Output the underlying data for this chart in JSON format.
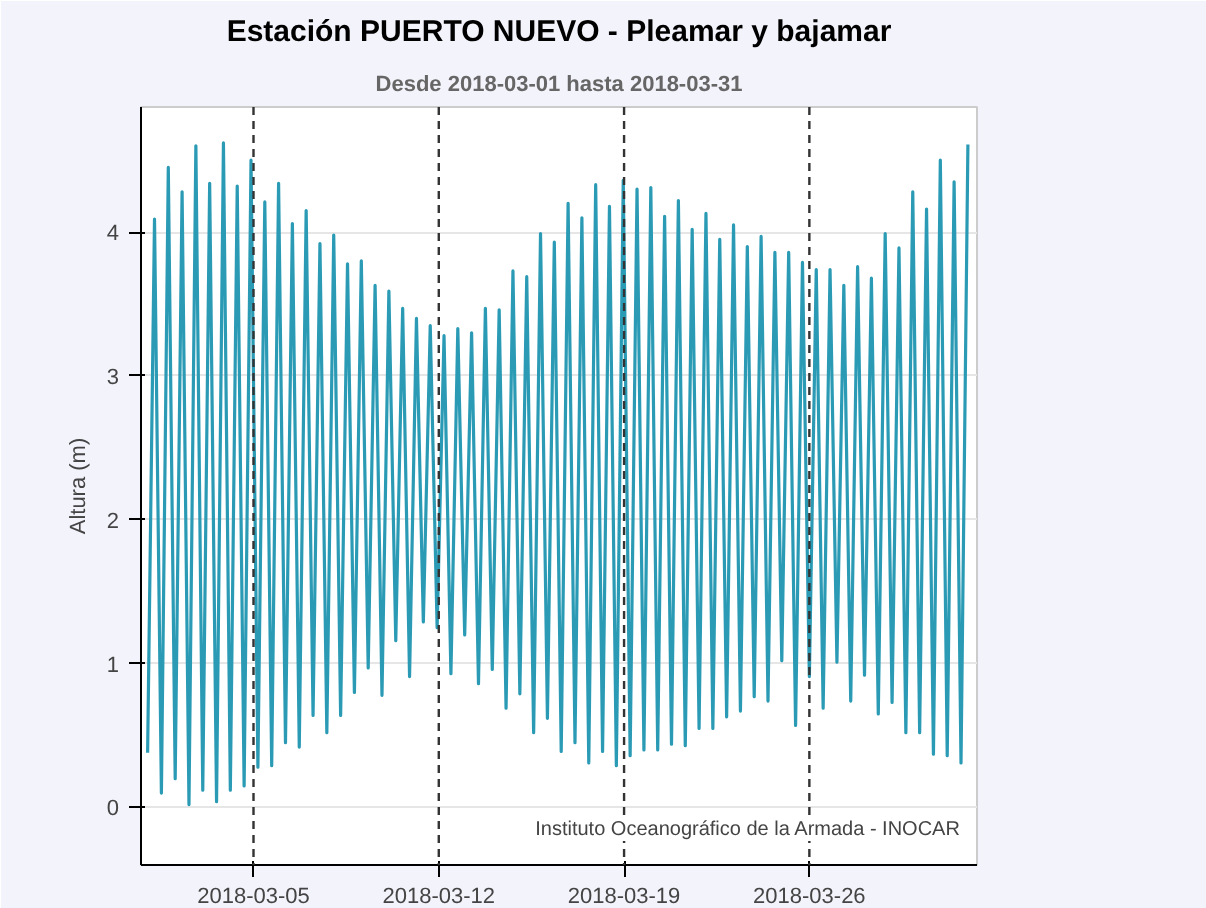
{
  "chart_data": {
    "type": "line",
    "title": "Estación PUERTO NUEVO - Pleamar y bajamar",
    "subtitle": "Desde 2018-03-01 hasta 2018-03-31",
    "ylabel": "Altura (m)",
    "annotations": [
      "Instituto Oceanográfico de la Armada - INOCAR"
    ],
    "xlim": [
      "2018-02-28T18:00",
      "2018-04-01T08:00"
    ],
    "xticks": [
      "2018-03-05",
      "2018-03-12",
      "2018-03-19",
      "2018-03-26"
    ],
    "ylim": [
      -0.4,
      4.87
    ],
    "yticks": [
      0,
      1,
      2,
      3,
      4
    ],
    "grid": "y",
    "marker": "none",
    "line_style": "solid",
    "ref_lines": [
      {
        "axis": "x",
        "value": "2018-03-05",
        "color": "#333333",
        "line_style": "dashed"
      },
      {
        "axis": "x",
        "value": "2018-03-12",
        "color": "#333333",
        "line_style": "dashed"
      },
      {
        "axis": "x",
        "value": "2018-03-19",
        "color": "#333333",
        "line_style": "dashed"
      },
      {
        "axis": "x",
        "value": "2018-03-26",
        "color": "#333333",
        "line_style": "dashed"
      }
    ],
    "x": [
      "2018-03-01T00:00",
      "2018-03-01T06:15",
      "2018-03-01T12:30",
      "2018-03-01T18:45",
      "2018-03-02T01:00",
      "2018-03-02T07:15",
      "2018-03-02T13:30",
      "2018-03-02T19:45",
      "2018-03-03T02:00",
      "2018-03-03T08:15",
      "2018-03-03T14:30",
      "2018-03-03T20:45",
      "2018-03-04T03:00",
      "2018-03-04T09:15",
      "2018-03-04T15:30",
      "2018-03-04T21:45",
      "2018-03-05T04:00",
      "2018-03-05T10:15",
      "2018-03-05T16:30",
      "2018-03-05T22:45",
      "2018-03-06T05:00",
      "2018-03-06T11:15",
      "2018-03-06T17:30",
      "2018-03-06T23:45",
      "2018-03-07T06:00",
      "2018-03-07T12:15",
      "2018-03-07T18:30",
      "2018-03-08T00:45",
      "2018-03-08T07:00",
      "2018-03-08T13:15",
      "2018-03-08T19:30",
      "2018-03-09T01:45",
      "2018-03-09T08:00",
      "2018-03-09T14:15",
      "2018-03-09T20:30",
      "2018-03-10T02:45",
      "2018-03-10T09:00",
      "2018-03-10T15:15",
      "2018-03-10T21:30",
      "2018-03-11T03:45",
      "2018-03-11T10:00",
      "2018-03-11T16:15",
      "2018-03-11T22:30",
      "2018-03-12T04:45",
      "2018-03-12T11:00",
      "2018-03-12T17:15",
      "2018-03-12T23:30",
      "2018-03-13T05:45",
      "2018-03-13T12:00",
      "2018-03-13T18:15",
      "2018-03-14T00:30",
      "2018-03-14T06:45",
      "2018-03-14T13:00",
      "2018-03-14T19:15",
      "2018-03-15T01:30",
      "2018-03-15T07:45",
      "2018-03-15T14:00",
      "2018-03-15T20:15",
      "2018-03-16T02:30",
      "2018-03-16T08:45",
      "2018-03-16T15:00",
      "2018-03-16T21:15",
      "2018-03-17T03:30",
      "2018-03-17T09:45",
      "2018-03-17T16:00",
      "2018-03-17T22:15",
      "2018-03-18T04:30",
      "2018-03-18T10:45",
      "2018-03-18T17:00",
      "2018-03-18T23:15",
      "2018-03-19T05:30",
      "2018-03-19T11:45",
      "2018-03-19T18:00",
      "2018-03-20T00:15",
      "2018-03-20T06:30",
      "2018-03-20T12:45",
      "2018-03-20T19:00",
      "2018-03-21T01:15",
      "2018-03-21T07:30",
      "2018-03-21T13:45",
      "2018-03-21T20:00",
      "2018-03-22T02:15",
      "2018-03-22T08:30",
      "2018-03-22T14:45",
      "2018-03-22T21:00",
      "2018-03-23T03:15",
      "2018-03-23T09:30",
      "2018-03-23T15:45",
      "2018-03-23T22:00",
      "2018-03-24T04:15",
      "2018-03-24T10:30",
      "2018-03-24T16:45",
      "2018-03-24T23:00",
      "2018-03-25T05:15",
      "2018-03-25T11:30",
      "2018-03-25T17:45",
      "2018-03-26T00:00",
      "2018-03-26T06:15",
      "2018-03-26T12:30",
      "2018-03-26T18:45",
      "2018-03-27T01:00",
      "2018-03-27T07:15",
      "2018-03-27T13:30",
      "2018-03-27T19:45",
      "2018-03-28T02:00",
      "2018-03-28T08:15",
      "2018-03-28T14:30",
      "2018-03-28T20:45",
      "2018-03-29T03:00",
      "2018-03-29T09:15",
      "2018-03-29T15:30",
      "2018-03-29T21:45",
      "2018-03-30T04:00",
      "2018-03-30T10:15",
      "2018-03-30T16:30",
      "2018-03-30T22:45",
      "2018-03-31T05:00",
      "2018-03-31T11:15",
      "2018-03-31T17:30",
      "2018-03-31T23:45"
    ],
    "series": [
      {
        "color": "#2b9bb5",
        "values": [
          0.38,
          4.09,
          0.1,
          4.45,
          0.2,
          4.28,
          0.02,
          4.6,
          0.12,
          4.34,
          0.04,
          4.62,
          0.12,
          4.32,
          0.15,
          4.5,
          0.28,
          4.21,
          0.29,
          4.34,
          0.45,
          4.06,
          0.42,
          4.15,
          0.64,
          3.92,
          0.52,
          3.98,
          0.64,
          3.78,
          0.8,
          3.8,
          0.97,
          3.63,
          0.78,
          3.59,
          1.16,
          3.47,
          0.91,
          3.4,
          1.29,
          3.35,
          1.25,
          3.28,
          0.93,
          3.33,
          1.2,
          3.3,
          0.86,
          3.47,
          0.96,
          3.46,
          0.69,
          3.73,
          0.79,
          3.69,
          0.52,
          3.99,
          0.62,
          3.93,
          0.39,
          4.2,
          0.45,
          4.1,
          0.31,
          4.33,
          0.39,
          4.18,
          0.29,
          4.36,
          0.36,
          4.3,
          0.4,
          4.31,
          0.4,
          4.11,
          0.44,
          4.22,
          0.43,
          4.02,
          0.55,
          4.13,
          0.55,
          3.95,
          0.63,
          4.05,
          0.67,
          3.9,
          0.77,
          3.97,
          0.74,
          3.86,
          1.02,
          3.86,
          0.57,
          3.79,
          0.91,
          3.74,
          0.69,
          3.74,
          1.01,
          3.63,
          0.74,
          3.76,
          0.92,
          3.68,
          0.65,
          3.99,
          0.73,
          3.89,
          0.52,
          4.28,
          0.52,
          4.16,
          0.37,
          4.5,
          0.36,
          4.35,
          0.31,
          4.61
        ]
      }
    ]
  }
}
